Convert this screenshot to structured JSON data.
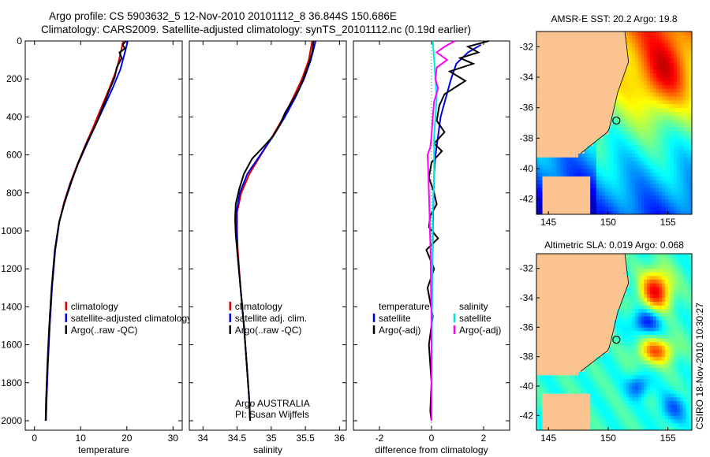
{
  "title_line1": "Argo profile: CS 5903632_5 12-Nov-2010 20101112_8 36.844S 150.686E",
  "title_line2": "Climatology: CARS2009. Satellite-adjusted climatology: synTS_20101112.nc (0.19d earlier)",
  "side_label": "CSIRO 18-Nov-2010 10:30:27",
  "colors": {
    "clim": "#e00000",
    "sat": "#0000e6",
    "argo": "#000000",
    "argo_diff_sal": "#ff00ff",
    "sat_sal": "#00e5e5",
    "land": "#fbc38f"
  },
  "chart_data": [
    {
      "type": "line",
      "id": "temperature",
      "xlabel": "temperature",
      "ylabel": "",
      "xlim": [
        -2,
        32
      ],
      "ylim": [
        2050,
        0
      ],
      "xticks": [
        0,
        10,
        20,
        30
      ],
      "xticklabels": [
        "0",
        "10",
        "20",
        "30"
      ],
      "yticks": [
        0,
        200,
        400,
        600,
        800,
        1000,
        1200,
        1400,
        1600,
        1800,
        2000
      ],
      "yticklabels": [
        "0",
        "200",
        "400",
        "600",
        "800",
        "1000",
        "1200",
        "1400",
        "1600",
        "1800",
        "2000"
      ],
      "legend": {
        "placement": "bottom-right",
        "entries": [
          "climatology",
          "satellite-adjusted climatology",
          "Argo(..raw -QC)"
        ]
      },
      "series": [
        {
          "name": "climatology",
          "color": "clim",
          "points": [
            [
              19.2,
              0
            ],
            [
              18.8,
              50
            ],
            [
              17.8,
              150
            ],
            [
              16.2,
              250
            ],
            [
              14.5,
              350
            ],
            [
              12.8,
              450
            ],
            [
              11,
              550
            ],
            [
              9.3,
              650
            ],
            [
              7.7,
              750
            ],
            [
              6.4,
              850
            ],
            [
              5.4,
              950
            ],
            [
              4.5,
              1100
            ],
            [
              3.8,
              1300
            ],
            [
              3.3,
              1500
            ],
            [
              2.9,
              1700
            ],
            [
              2.6,
              1900
            ],
            [
              2.5,
              2000
            ]
          ]
        },
        {
          "name": "satellite-adjusted climatology",
          "color": "sat",
          "points": [
            [
              20.2,
              0
            ],
            [
              19.7,
              50
            ],
            [
              18.6,
              150
            ],
            [
              16.9,
              250
            ],
            [
              15,
              350
            ],
            [
              13.1,
              450
            ],
            [
              11.2,
              550
            ],
            [
              9.4,
              650
            ],
            [
              7.8,
              750
            ],
            [
              6.5,
              850
            ],
            [
              5.4,
              950
            ],
            [
              4.5,
              1100
            ],
            [
              3.8,
              1300
            ],
            [
              3.3,
              1500
            ],
            [
              2.9,
              1700
            ],
            [
              2.6,
              1900
            ],
            [
              2.5,
              2000
            ]
          ]
        },
        {
          "name": "Argo(..raw -QC)",
          "color": "argo",
          "points": [
            [
              19.8,
              0
            ],
            [
              19.1,
              20
            ],
            [
              19.6,
              40
            ],
            [
              18.4,
              60
            ],
            [
              18.9,
              90
            ],
            [
              17.8,
              140
            ],
            [
              17.4,
              190
            ],
            [
              16.2,
              260
            ],
            [
              15.1,
              330
            ],
            [
              13.3,
              440
            ],
            [
              11.3,
              540
            ],
            [
              9.5,
              640
            ],
            [
              7.9,
              750
            ],
            [
              6.4,
              860
            ],
            [
              5.3,
              960
            ],
            [
              4.4,
              1100
            ],
            [
              3.7,
              1300
            ],
            [
              3.2,
              1500
            ],
            [
              2.8,
              1700
            ],
            [
              2.5,
              1900
            ],
            [
              2.4,
              2000
            ]
          ]
        }
      ]
    },
    {
      "type": "line",
      "id": "salinity",
      "xlabel": "salinity",
      "ylabel": "",
      "xlim": [
        33.8,
        36.1
      ],
      "ylim": [
        2050,
        0
      ],
      "xticks": [
        34,
        34.5,
        35,
        35.5,
        36
      ],
      "xticklabels": [
        "34",
        "34.5",
        "35",
        "35.5",
        "36"
      ],
      "legend": {
        "placement": "bottom-right",
        "entries": [
          "climatology",
          "satellite adj. clim.",
          "Argo(..raw -QC)"
        ]
      },
      "annotation": [
        "Argo AUSTRALIA",
        "PI: Susan Wijffels"
      ],
      "series": [
        {
          "name": "climatology",
          "color": "clim",
          "points": [
            [
              35.6,
              0
            ],
            [
              35.55,
              100
            ],
            [
              35.45,
              200
            ],
            [
              35.32,
              300
            ],
            [
              35.18,
              400
            ],
            [
              35.02,
              500
            ],
            [
              34.85,
              600
            ],
            [
              34.68,
              700
            ],
            [
              34.56,
              800
            ],
            [
              34.5,
              900
            ],
            [
              34.5,
              1000
            ],
            [
              34.51,
              1100
            ],
            [
              34.55,
              1300
            ],
            [
              34.6,
              1500
            ],
            [
              34.64,
              1700
            ],
            [
              34.68,
              1900
            ],
            [
              34.69,
              2000
            ]
          ]
        },
        {
          "name": "satellite adj. clim.",
          "color": "sat",
          "points": [
            [
              35.65,
              0
            ],
            [
              35.58,
              100
            ],
            [
              35.48,
              200
            ],
            [
              35.35,
              300
            ],
            [
              35.2,
              400
            ],
            [
              35.03,
              500
            ],
            [
              34.84,
              600
            ],
            [
              34.65,
              700
            ],
            [
              34.54,
              800
            ],
            [
              34.49,
              900
            ],
            [
              34.49,
              1000
            ],
            [
              34.5,
              1100
            ],
            [
              34.55,
              1300
            ],
            [
              34.6,
              1500
            ],
            [
              34.64,
              1700
            ],
            [
              34.68,
              1900
            ],
            [
              34.69,
              2000
            ]
          ]
        },
        {
          "name": "Argo(..raw -QC)",
          "color": "argo",
          "points": [
            [
              35.62,
              0
            ],
            [
              35.6,
              60
            ],
            [
              35.55,
              120
            ],
            [
              35.47,
              200
            ],
            [
              35.4,
              260
            ],
            [
              35.3,
              320
            ],
            [
              35.2,
              380
            ],
            [
              35.13,
              440
            ],
            [
              35.03,
              500
            ],
            [
              34.88,
              560
            ],
            [
              34.72,
              620
            ],
            [
              34.6,
              700
            ],
            [
              34.53,
              780
            ],
            [
              34.48,
              860
            ],
            [
              34.47,
              940
            ],
            [
              34.48,
              1020
            ],
            [
              34.5,
              1100
            ],
            [
              34.55,
              1300
            ],
            [
              34.6,
              1500
            ],
            [
              34.64,
              1700
            ],
            [
              34.68,
              1900
            ],
            [
              34.69,
              2000
            ]
          ]
        }
      ]
    },
    {
      "type": "line",
      "id": "difference",
      "xlabel": "difference from climatology",
      "ylabel": "",
      "xlim": [
        -3,
        3
      ],
      "ylim": [
        2050,
        0
      ],
      "xticks": [
        -2,
        0,
        2
      ],
      "xticklabels": [
        "-2",
        "0",
        "2"
      ],
      "legend": {
        "placement": "bottom",
        "groups": [
          {
            "title": "temperature",
            "entries": [
              "satellite",
              "Argo(-adj)"
            ]
          },
          {
            "title": "salinity",
            "entries": [
              "satellite",
              "Argo(-adj)"
            ]
          }
        ]
      },
      "series": [
        {
          "name": "temperature satellite",
          "color": "sat",
          "points": [
            [
              1.9,
              20
            ],
            [
              1.4,
              60
            ],
            [
              0.95,
              120
            ],
            [
              0.75,
              200
            ],
            [
              0.55,
              300
            ],
            [
              0.35,
              400
            ],
            [
              0.25,
              500
            ],
            [
              0.15,
              600
            ],
            [
              0.1,
              700
            ],
            [
              0.08,
              800
            ],
            [
              0.05,
              1000
            ],
            [
              0.03,
              1200
            ],
            [
              0.01,
              1500
            ],
            [
              0,
              2000
            ]
          ]
        },
        {
          "name": "temperature Argo(-adj)",
          "color": "argo",
          "points": [
            [
              2.2,
              0
            ],
            [
              1.4,
              30
            ],
            [
              1.8,
              60
            ],
            [
              1.1,
              90
            ],
            [
              1.6,
              120
            ],
            [
              0.7,
              160
            ],
            [
              1.3,
              210
            ],
            [
              0.5,
              280
            ],
            [
              0.3,
              340
            ],
            [
              0.2,
              420
            ],
            [
              0.5,
              480
            ],
            [
              0.1,
              540
            ],
            [
              0.4,
              580
            ],
            [
              0,
              640
            ],
            [
              -0.1,
              720
            ],
            [
              0.1,
              800
            ],
            [
              0.2,
              860
            ],
            [
              -0.05,
              920
            ],
            [
              -0.1,
              980
            ],
            [
              0.25,
              1040
            ],
            [
              -0.2,
              1100
            ],
            [
              0.1,
              1200
            ],
            [
              -0.15,
              1300
            ],
            [
              0.05,
              1450
            ],
            [
              -0.1,
              1600
            ],
            [
              0,
              1800
            ],
            [
              -0.05,
              1950
            ],
            [
              0,
              2000
            ]
          ]
        },
        {
          "name": "salinity satellite",
          "color": "sat_sal",
          "points": [
            [
              0.05,
              0
            ],
            [
              0.1,
              100
            ],
            [
              0.2,
              300
            ],
            [
              0.1,
              500
            ],
            [
              0.1,
              700
            ],
            [
              0.05,
              900
            ],
            [
              0.03,
              1100
            ],
            [
              0.02,
              1400
            ],
            [
              0.01,
              1700
            ],
            [
              0,
              2000
            ]
          ]
        },
        {
          "name": "salinity Argo(-adj)",
          "color": "argo_diff_sal",
          "points": [
            [
              0.9,
              0
            ],
            [
              0.5,
              30
            ],
            [
              0.2,
              60
            ],
            [
              0.6,
              100
            ],
            [
              0.2,
              140
            ],
            [
              0.15,
              200
            ],
            [
              0.25,
              250
            ],
            [
              0.1,
              320
            ],
            [
              0.05,
              400
            ],
            [
              0,
              500
            ],
            [
              -0.05,
              560
            ],
            [
              -0.15,
              600
            ],
            [
              -0.12,
              700
            ],
            [
              -0.1,
              800
            ],
            [
              -0.08,
              900
            ],
            [
              -0.06,
              1000
            ],
            [
              -0.04,
              1100
            ],
            [
              -0.02,
              1300
            ],
            [
              0,
              1500
            ],
            [
              0,
              2000
            ]
          ]
        }
      ]
    },
    {
      "type": "heatmap",
      "id": "sst-map",
      "title": "AMSR-E SST: 20.2 Argo: 19.8",
      "xlim": [
        144,
        157
      ],
      "ylim": [
        -43,
        -31
      ],
      "xticks": [
        145,
        150,
        155
      ],
      "xticklabels": [
        "145",
        "150",
        "155"
      ],
      "yticks": [
        -32,
        -34,
        -36,
        -38,
        -40,
        -42
      ],
      "yticklabels": [
        "-32",
        "-34",
        "-36",
        "-38",
        "-40",
        "-42"
      ],
      "float_position": [
        150.686,
        -36.844
      ],
      "scheme": "warm-north-cool-south"
    },
    {
      "type": "heatmap",
      "id": "sla-map",
      "title": "Altimetric SLA: 0.019 Argo: 0.068",
      "xlim": [
        144,
        157
      ],
      "ylim": [
        -43,
        -31
      ],
      "xticks": [
        145,
        150,
        155
      ],
      "xticklabels": [
        "145",
        "150",
        "155"
      ],
      "yticks": [
        -32,
        -34,
        -36,
        -38,
        -40,
        -42
      ],
      "yticklabels": [
        "-32",
        "-34",
        "-36",
        "-38",
        "-40",
        "-42"
      ],
      "float_position": [
        150.686,
        -36.844
      ],
      "scheme": "eddy-field"
    }
  ]
}
